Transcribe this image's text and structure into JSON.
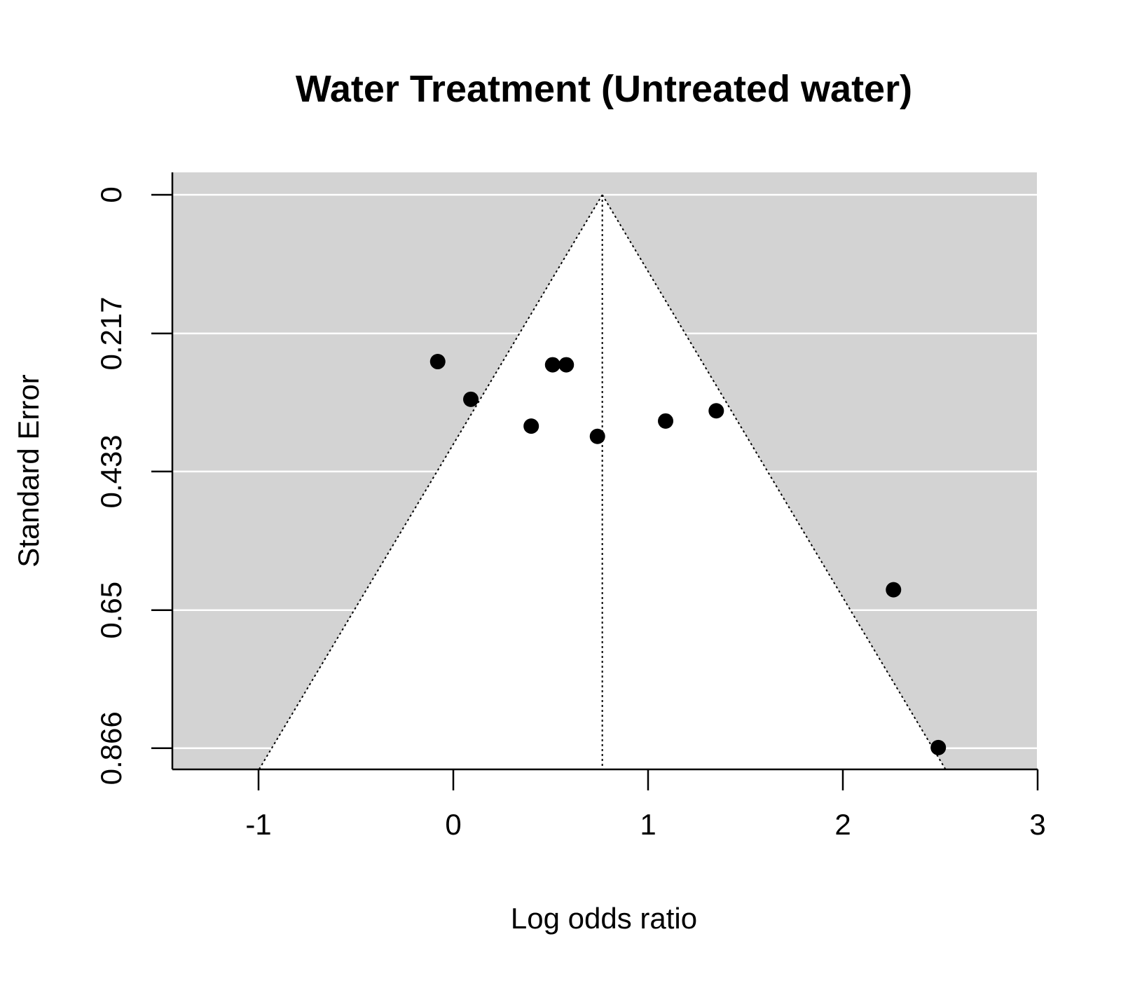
{
  "chart_data": {
    "type": "scatter",
    "subtype": "funnel",
    "title": "Water Treatment (Untreated water)",
    "xlabel": "Log odds ratio",
    "ylabel": "Standard Error",
    "xlim": [
      -1.44,
      3.0
    ],
    "ylim": [
      0.9,
      0.0
    ],
    "y_axis_reversed": true,
    "x_ticks": [
      -1,
      0,
      1,
      2,
      3
    ],
    "x_tick_labels": [
      "-1",
      "0",
      "1",
      "2",
      "3"
    ],
    "y_ticks": [
      0,
      0.217,
      0.433,
      0.65,
      0.866
    ],
    "y_tick_labels": [
      "0",
      "0.217",
      "0.433",
      "0.65",
      "0.866"
    ],
    "summary_estimate": 0.765,
    "funnel_z": 1.96,
    "funnel_max_se": 0.9,
    "grid": true,
    "colors": {
      "panel_background": "#d3d3d3",
      "funnel_region": "#ffffff",
      "points": "#000000",
      "gridlines": "#ffffff"
    },
    "points": [
      {
        "x": -0.08,
        "y": 0.261
      },
      {
        "x": 0.09,
        "y": 0.32
      },
      {
        "x": 0.4,
        "y": 0.362
      },
      {
        "x": 0.51,
        "y": 0.266
      },
      {
        "x": 0.58,
        "y": 0.266
      },
      {
        "x": 0.74,
        "y": 0.378
      },
      {
        "x": 1.09,
        "y": 0.354
      },
      {
        "x": 1.35,
        "y": 0.338
      },
      {
        "x": 2.26,
        "y": 0.618
      },
      {
        "x": 2.49,
        "y": 0.865
      }
    ]
  }
}
